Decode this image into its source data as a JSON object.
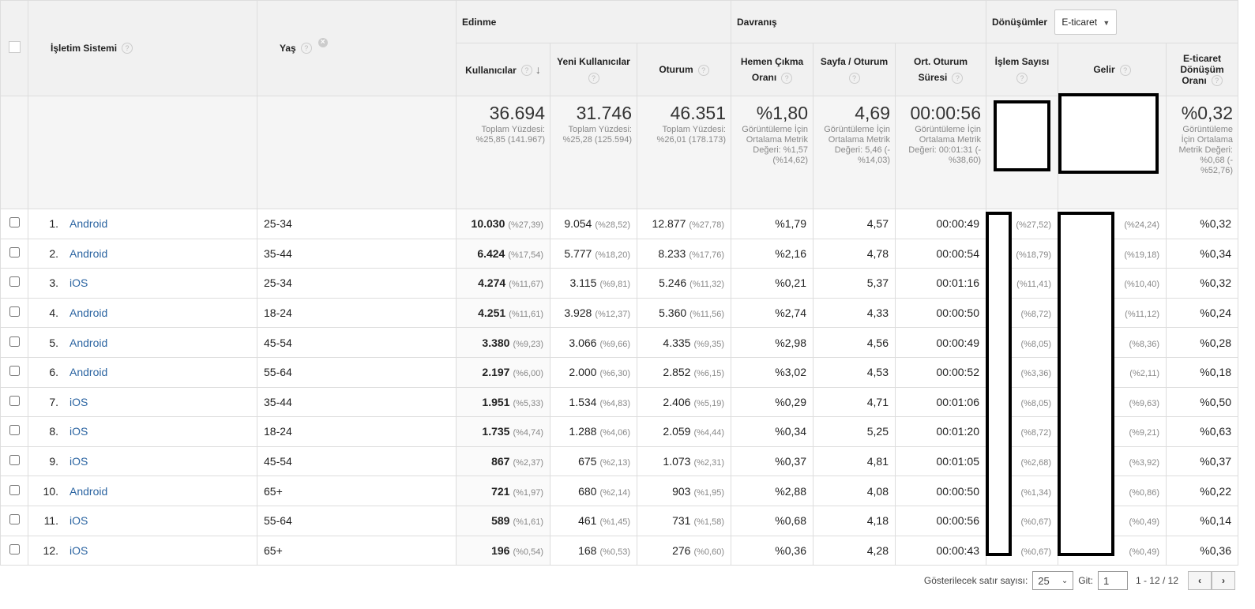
{
  "headers": {
    "os": "İşletim Sistemi",
    "age": "Yaş",
    "acquisition": "Edinme",
    "behavior": "Davranış",
    "conversions": "Dönüşümler",
    "conversion_select": "E-ticaret",
    "users": "Kullanıcılar",
    "new_users_1": "Yeni Kullanıcılar",
    "sessions": "Oturum",
    "bounce_1": "Hemen Çıkma",
    "bounce_2": "Oranı",
    "pps_1": "Sayfa / Oturum",
    "avg_1": "Ort. Oturum",
    "avg_2": "Süresi",
    "transactions_1": "İşlem Sayısı",
    "revenue": "Gelir",
    "ecom_1": "E-ticaret",
    "ecom_2": "Dönüşüm",
    "ecom_3": "Oranı"
  },
  "summary": {
    "users": {
      "value": "36.694",
      "sub": "Toplam Yüzdesi: %25,85 (141.967)"
    },
    "new_users": {
      "value": "31.746",
      "sub": "Toplam Yüzdesi: %25,28 (125.594)"
    },
    "sessions": {
      "value": "46.351",
      "sub": "Toplam Yüzdesi: %26,01 (178.173)"
    },
    "bounce": {
      "value": "%1,80",
      "sub": "Görüntüleme İçin Ortalama Metrik Değeri: %1,57 (%14,62)"
    },
    "pps": {
      "value": "4,69",
      "sub": "Görüntüleme İçin Ortalama Metrik Değeri: 5,46 (-%14,03)"
    },
    "avg": {
      "value": "00:00:56",
      "sub": "Görüntüleme İçin Ortalama Metrik Değeri: 00:01:31 (-%38,60)"
    },
    "ecom": {
      "value": "%0,32",
      "sub": "Görüntüleme İçin Ortalama Metrik Değeri: %0,68 (-%52,76)"
    }
  },
  "rows": [
    {
      "idx": "1.",
      "os": "Android",
      "age": "25-34",
      "users": "10.030",
      "users_pct": "(%27,39)",
      "new": "9.054",
      "new_pct": "(%28,52)",
      "sess": "12.877",
      "sess_pct": "(%27,78)",
      "bounce": "%1,79",
      "pps": "4,57",
      "avg": "00:00:49",
      "tr_pct": "(%27,52)",
      "rev_pct": "(%24,24)",
      "ecom": "%0,32"
    },
    {
      "idx": "2.",
      "os": "Android",
      "age": "35-44",
      "users": "6.424",
      "users_pct": "(%17,54)",
      "new": "5.777",
      "new_pct": "(%18,20)",
      "sess": "8.233",
      "sess_pct": "(%17,76)",
      "bounce": "%2,16",
      "pps": "4,78",
      "avg": "00:00:54",
      "tr_pct": "(%18,79)",
      "rev_pct": "(%19,18)",
      "ecom": "%0,34"
    },
    {
      "idx": "3.",
      "os": "iOS",
      "age": "25-34",
      "users": "4.274",
      "users_pct": "(%11,67)",
      "new": "3.115",
      "new_pct": "(%9,81)",
      "sess": "5.246",
      "sess_pct": "(%11,32)",
      "bounce": "%0,21",
      "pps": "5,37",
      "avg": "00:01:16",
      "tr_pct": "(%11,41)",
      "rev_pct": "(%10,40)",
      "ecom": "%0,32"
    },
    {
      "idx": "4.",
      "os": "Android",
      "age": "18-24",
      "users": "4.251",
      "users_pct": "(%11,61)",
      "new": "3.928",
      "new_pct": "(%12,37)",
      "sess": "5.360",
      "sess_pct": "(%11,56)",
      "bounce": "%2,74",
      "pps": "4,33",
      "avg": "00:00:50",
      "tr_pct": "(%8,72)",
      "rev_pct": "(%11,12)",
      "ecom": "%0,24"
    },
    {
      "idx": "5.",
      "os": "Android",
      "age": "45-54",
      "users": "3.380",
      "users_pct": "(%9,23)",
      "new": "3.066",
      "new_pct": "(%9,66)",
      "sess": "4.335",
      "sess_pct": "(%9,35)",
      "bounce": "%2,98",
      "pps": "4,56",
      "avg": "00:00:49",
      "tr_pct": "(%8,05)",
      "rev_pct": "(%8,36)",
      "ecom": "%0,28"
    },
    {
      "idx": "6.",
      "os": "Android",
      "age": "55-64",
      "users": "2.197",
      "users_pct": "(%6,00)",
      "new": "2.000",
      "new_pct": "(%6,30)",
      "sess": "2.852",
      "sess_pct": "(%6,15)",
      "bounce": "%3,02",
      "pps": "4,53",
      "avg": "00:00:52",
      "tr_pct": "(%3,36)",
      "rev_pct": "(%2,11)",
      "ecom": "%0,18"
    },
    {
      "idx": "7.",
      "os": "iOS",
      "age": "35-44",
      "users": "1.951",
      "users_pct": "(%5,33)",
      "new": "1.534",
      "new_pct": "(%4,83)",
      "sess": "2.406",
      "sess_pct": "(%5,19)",
      "bounce": "%0,29",
      "pps": "4,71",
      "avg": "00:01:06",
      "tr_pct": "(%8,05)",
      "rev_pct": "(%9,63)",
      "ecom": "%0,50"
    },
    {
      "idx": "8.",
      "os": "iOS",
      "age": "18-24",
      "users": "1.735",
      "users_pct": "(%4,74)",
      "new": "1.288",
      "new_pct": "(%4,06)",
      "sess": "2.059",
      "sess_pct": "(%4,44)",
      "bounce": "%0,34",
      "pps": "5,25",
      "avg": "00:01:20",
      "tr_pct": "(%8,72)",
      "rev_pct": "(%9,21)",
      "ecom": "%0,63"
    },
    {
      "idx": "9.",
      "os": "iOS",
      "age": "45-54",
      "users": "867",
      "users_pct": "(%2,37)",
      "new": "675",
      "new_pct": "(%2,13)",
      "sess": "1.073",
      "sess_pct": "(%2,31)",
      "bounce": "%0,37",
      "pps": "4,81",
      "avg": "00:01:05",
      "tr_pct": "(%2,68)",
      "rev_pct": "(%3,92)",
      "ecom": "%0,37"
    },
    {
      "idx": "10.",
      "os": "Android",
      "age": "65+",
      "users": "721",
      "users_pct": "(%1,97)",
      "new": "680",
      "new_pct": "(%2,14)",
      "sess": "903",
      "sess_pct": "(%1,95)",
      "bounce": "%2,88",
      "pps": "4,08",
      "avg": "00:00:50",
      "tr_pct": "(%1,34)",
      "rev_pct": "(%0,86)",
      "ecom": "%0,22"
    },
    {
      "idx": "11.",
      "os": "iOS",
      "age": "55-64",
      "users": "589",
      "users_pct": "(%1,61)",
      "new": "461",
      "new_pct": "(%1,45)",
      "sess": "731",
      "sess_pct": "(%1,58)",
      "bounce": "%0,68",
      "pps": "4,18",
      "avg": "00:00:56",
      "tr_pct": "(%0,67)",
      "rev_pct": "(%0,49)",
      "ecom": "%0,14"
    },
    {
      "idx": "12.",
      "os": "iOS",
      "age": "65+",
      "users": "196",
      "users_pct": "(%0,54)",
      "new": "168",
      "new_pct": "(%0,53)",
      "sess": "276",
      "sess_pct": "(%0,60)",
      "bounce": "%0,36",
      "pps": "4,28",
      "avg": "00:00:43",
      "tr_pct": "(%0,67)",
      "rev_pct": "(%0,49)",
      "ecom": "%0,36"
    }
  ],
  "footer": {
    "rows_label": "Gösterilecek satır sayısı:",
    "rows_value": "25",
    "goto_label": "Git:",
    "goto_value": "1",
    "range": "1 - 12 / 12"
  }
}
